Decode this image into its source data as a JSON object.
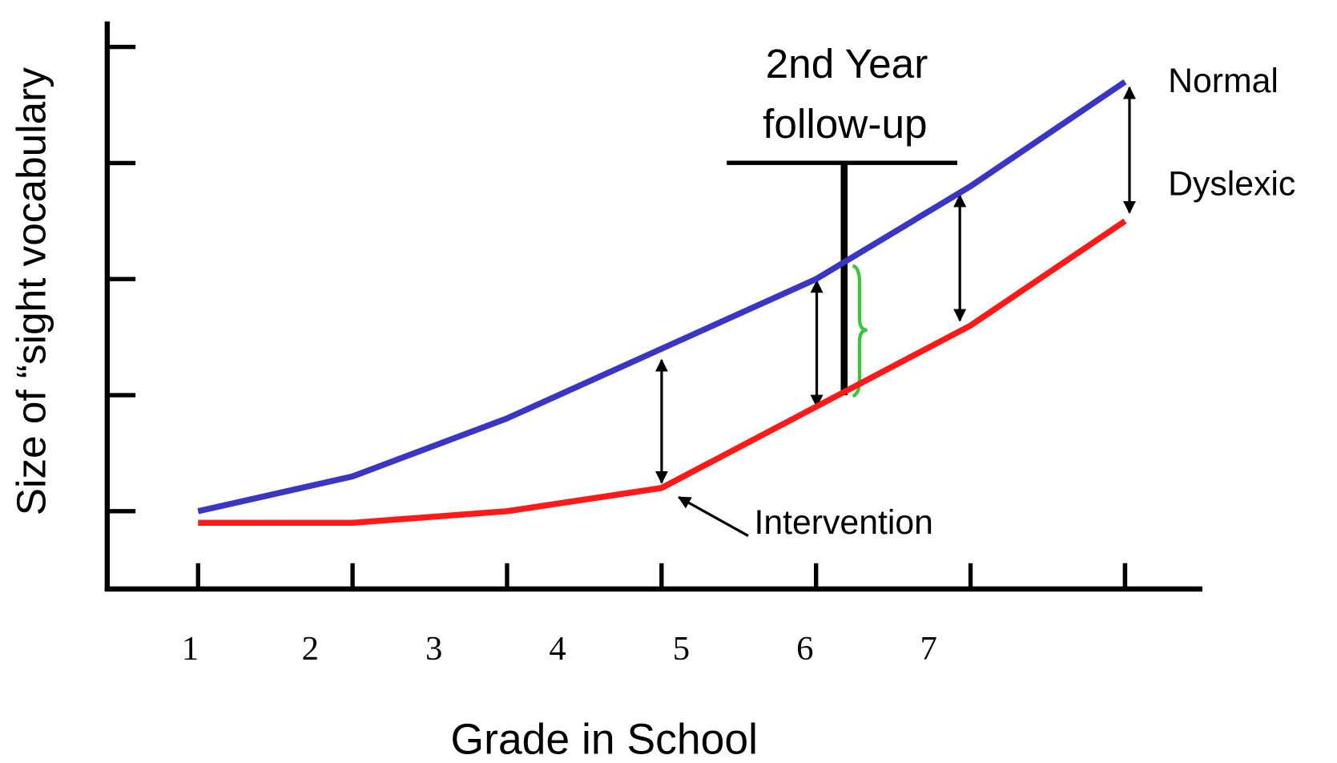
{
  "chart_data": {
    "type": "line",
    "xlabel": "Grade in School",
    "ylabel": "Size of “sight vocabulary",
    "categories": [
      "1",
      "2",
      "3",
      "4",
      "5",
      "6",
      "7"
    ],
    "series": [
      {
        "name": "Normal",
        "color": "#3a36c4",
        "values": [
          1.0,
          1.3,
          1.8,
          2.4,
          3.0,
          3.8,
          4.7
        ]
      },
      {
        "name": "Dyslexic",
        "color": "#ff1a1a",
        "values": [
          0.9,
          0.9,
          1.0,
          1.2,
          1.9,
          2.6,
          3.5
        ]
      }
    ],
    "ylim": [
      0.33,
      5.22
    ],
    "yticks": [
      1,
      2,
      3,
      4,
      5
    ],
    "ytick_labels": false,
    "annotations": [
      "2nd Year",
      "follow-up",
      "Intervention"
    ]
  }
}
